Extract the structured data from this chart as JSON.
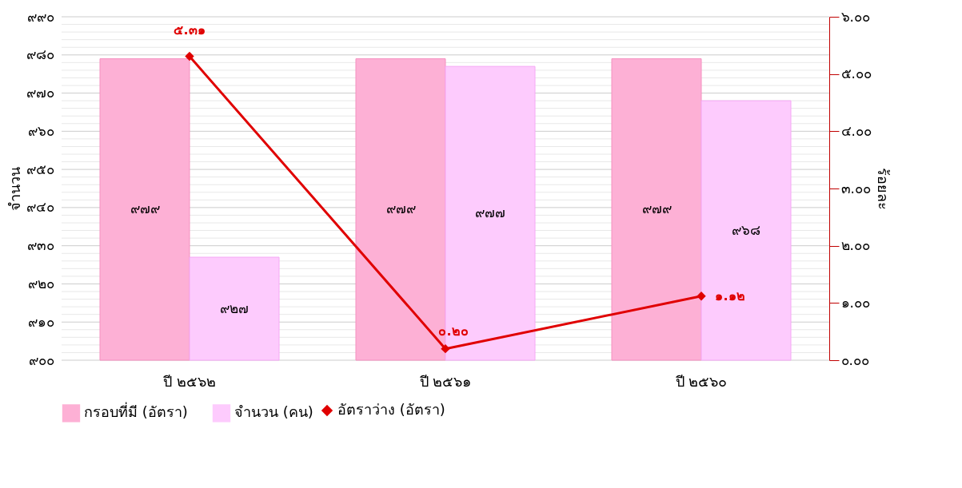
{
  "chart_data": {
    "type": "bar",
    "categories": [
      "ปี ๒๕๖๒",
      "ปี ๒๕๖๑",
      "ปี ๒๕๖๐"
    ],
    "ylabel": "จำนวน",
    "y2label": "ร้อยละ",
    "ylim": [
      900,
      990
    ],
    "yticks": [
      {
        "value": 900,
        "label": "๙๐๐"
      },
      {
        "value": 902,
        "label": null
      },
      {
        "value": 904,
        "label": null
      },
      {
        "value": 906,
        "label": null
      },
      {
        "value": 908,
        "label": null
      },
      {
        "value": 910,
        "label": "๙๑๐"
      },
      {
        "value": 912,
        "label": null
      },
      {
        "value": 914,
        "label": null
      },
      {
        "value": 916,
        "label": null
      },
      {
        "value": 918,
        "label": null
      },
      {
        "value": 920,
        "label": "๙๒๐"
      },
      {
        "value": 922,
        "label": null
      },
      {
        "value": 924,
        "label": null
      },
      {
        "value": 926,
        "label": null
      },
      {
        "value": 928,
        "label": null
      },
      {
        "value": 930,
        "label": "๙๓๐"
      },
      {
        "value": 932,
        "label": null
      },
      {
        "value": 934,
        "label": null
      },
      {
        "value": 936,
        "label": null
      },
      {
        "value": 938,
        "label": null
      },
      {
        "value": 940,
        "label": "๙๔๐"
      },
      {
        "value": 942,
        "label": null
      },
      {
        "value": 944,
        "label": null
      },
      {
        "value": 946,
        "label": null
      },
      {
        "value": 948,
        "label": null
      },
      {
        "value": 950,
        "label": "๙๕๐"
      },
      {
        "value": 952,
        "label": null
      },
      {
        "value": 954,
        "label": null
      },
      {
        "value": 956,
        "label": null
      },
      {
        "value": 958,
        "label": null
      },
      {
        "value": 960,
        "label": "๙๖๐"
      },
      {
        "value": 962,
        "label": null
      },
      {
        "value": 964,
        "label": null
      },
      {
        "value": 966,
        "label": null
      },
      {
        "value": 968,
        "label": null
      },
      {
        "value": 970,
        "label": "๙๗๐"
      },
      {
        "value": 972,
        "label": null
      },
      {
        "value": 974,
        "label": null
      },
      {
        "value": 976,
        "label": null
      },
      {
        "value": 978,
        "label": null
      },
      {
        "value": 980,
        "label": "๙๘๐"
      },
      {
        "value": 982,
        "label": null
      },
      {
        "value": 984,
        "label": null
      },
      {
        "value": 986,
        "label": null
      },
      {
        "value": 988,
        "label": null
      },
      {
        "value": 990,
        "label": "๙๙๐"
      }
    ],
    "y2lim": [
      0,
      6
    ],
    "y2ticks": [
      {
        "value": 0,
        "label": "๐.๐๐"
      },
      {
        "value": 1,
        "label": "๑.๐๐"
      },
      {
        "value": 2,
        "label": "๒.๐๐"
      },
      {
        "value": 3,
        "label": "๓.๐๐"
      },
      {
        "value": 4,
        "label": "๔.๐๐"
      },
      {
        "value": 5,
        "label": "๕.๐๐"
      },
      {
        "value": 6,
        "label": "๖.๐๐"
      }
    ],
    "grid": "y",
    "legend": "bottom",
    "series": [
      {
        "name": "กรอบที่มี (อัตรา)",
        "color": "#fdb0d5",
        "values": [
          979,
          979,
          979
        ],
        "value_labels": [
          "๙๗๙",
          "๙๗๙",
          "๙๗๙"
        ]
      },
      {
        "name": "จำนวน (คน)",
        "color": "#fdcbfd",
        "values": [
          927,
          977,
          968
        ],
        "value_labels": [
          "๙๒๗",
          "๙๗๗",
          "๙๖๘"
        ]
      },
      {
        "name": "อัตราว่าง (อัตรา)",
        "type": "line",
        "axis": "y2",
        "color": "#e00000",
        "marker": "diamond",
        "values": [
          5.31,
          0.2,
          1.12
        ],
        "value_labels": [
          "๕.๓๑",
          "๐.๒๐",
          "๑.๑๒"
        ]
      }
    ]
  }
}
